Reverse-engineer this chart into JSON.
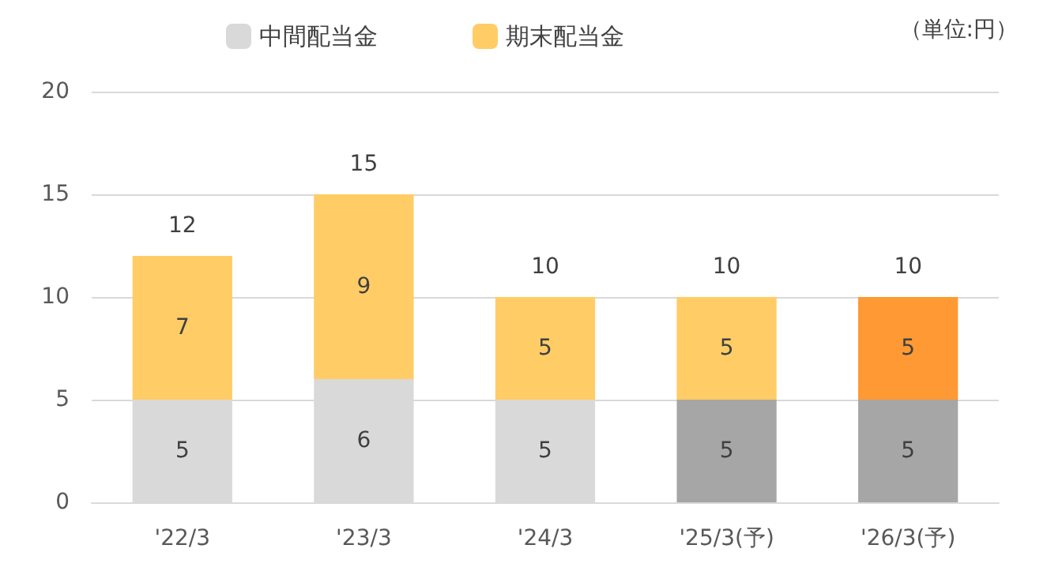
{
  "chart_data": {
    "type": "bar",
    "stacked": true,
    "categories": [
      "'22/3",
      "'23/3",
      "'24/3",
      "'25/3(予)",
      "'26/3(予)"
    ],
    "series": [
      {
        "name": "中間配当金",
        "color": "#d9d9d9",
        "colors": [
          "#d9d9d9",
          "#d9d9d9",
          "#d9d9d9",
          "#a6a6a6",
          "#a6a6a6"
        ],
        "values": [
          5,
          6,
          5,
          5,
          5
        ]
      },
      {
        "name": "期末配当金",
        "color": "#ffcc66",
        "colors": [
          "#ffcc66",
          "#ffcc66",
          "#ffcc66",
          "#ffcc66",
          "#ff9933"
        ],
        "values": [
          7,
          9,
          5,
          5,
          5
        ]
      }
    ],
    "totals": [
      "12",
      "15",
      "10",
      "10",
      "10"
    ],
    "data_labels": true,
    "ylim": [
      0,
      20
    ],
    "yticks": [
      0,
      5,
      10,
      15,
      20
    ],
    "grid": "y",
    "legend": "top",
    "annotations": [
      "（単位:円）"
    ]
  }
}
